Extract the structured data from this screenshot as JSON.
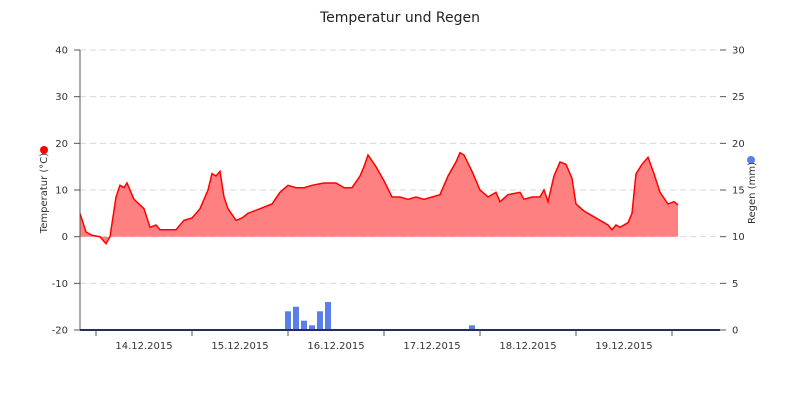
{
  "chart_data": {
    "type": "line",
    "title": "Temperatur und Regen",
    "x_range": [
      "2015-12-13T20:00",
      "2015-12-20T12:00"
    ],
    "x_tick_labels": [
      "14.12.2015",
      "15.12.2015",
      "16.12.2015",
      "17.12.2015",
      "18.12.2015",
      "19.12.2015"
    ],
    "x_ticks": [
      "2015-12-14T00:00",
      "2015-12-15T00:00",
      "2015-12-16T00:00",
      "2015-12-17T00:00",
      "2015-12-18T00:00",
      "2015-12-19T00:00",
      "2015-12-20T00:00"
    ],
    "y_left": {
      "label": "Temperatur (°C)",
      "range": [
        -20,
        40
      ],
      "ticks": [
        "-20",
        "-10",
        "0",
        "10",
        "20",
        "30",
        "40"
      ],
      "marker_color": "#ff0000"
    },
    "y_right": {
      "label": "Regen (mm)",
      "range": [
        0,
        30
      ],
      "ticks": [
        "0",
        "5",
        "10",
        "15",
        "20",
        "25",
        "30"
      ],
      "marker_color": "#5b7fe8"
    },
    "grid": true,
    "series": [
      {
        "type": "area",
        "axis": "left",
        "color": "#ff0000",
        "fill": "#ff8080",
        "points": [
          [
            "2015-12-13T20:00",
            5.0
          ],
          [
            "2015-12-13T21:30",
            1.0
          ],
          [
            "2015-12-13T23:00",
            0.3
          ],
          [
            "2015-12-14T01:00",
            0.0
          ],
          [
            "2015-12-14T02:30",
            -1.5
          ],
          [
            "2015-12-14T03:30",
            0.0
          ],
          [
            "2015-12-14T05:00",
            8.5
          ],
          [
            "2015-12-14T06:00",
            11.0
          ],
          [
            "2015-12-14T07:00",
            10.5
          ],
          [
            "2015-12-14T07:45",
            11.5
          ],
          [
            "2015-12-14T09:30",
            8.0
          ],
          [
            "2015-12-14T12:00",
            6.0
          ],
          [
            "2015-12-14T13:30",
            2.0
          ],
          [
            "2015-12-14T15:00",
            2.5
          ],
          [
            "2015-12-14T16:00",
            1.5
          ],
          [
            "2015-12-14T18:00",
            1.5
          ],
          [
            "2015-12-14T20:00",
            1.5
          ],
          [
            "2015-12-14T22:00",
            3.5
          ],
          [
            "2015-12-15T00:00",
            4.0
          ],
          [
            "2015-12-15T02:00",
            6.0
          ],
          [
            "2015-12-15T04:00",
            10.0
          ],
          [
            "2015-12-15T05:00",
            13.5
          ],
          [
            "2015-12-15T06:00",
            13.0
          ],
          [
            "2015-12-15T07:00",
            14.0
          ],
          [
            "2015-12-15T08:00",
            8.5
          ],
          [
            "2015-12-15T09:00",
            6.0
          ],
          [
            "2015-12-15T11:00",
            3.5
          ],
          [
            "2015-12-15T12:30",
            4.0
          ],
          [
            "2015-12-15T14:00",
            5.0
          ],
          [
            "2015-12-15T17:00",
            6.0
          ],
          [
            "2015-12-15T20:00",
            7.0
          ],
          [
            "2015-12-15T22:00",
            9.5
          ],
          [
            "2015-12-16T00:00",
            11.0
          ],
          [
            "2015-12-16T02:00",
            10.5
          ],
          [
            "2015-12-16T04:00",
            10.5
          ],
          [
            "2015-12-16T06:00",
            11.0
          ],
          [
            "2015-12-16T09:00",
            11.5
          ],
          [
            "2015-12-16T12:00",
            11.5
          ],
          [
            "2015-12-16T14:00",
            10.5
          ],
          [
            "2015-12-16T16:00",
            10.5
          ],
          [
            "2015-12-16T18:00",
            13.0
          ],
          [
            "2015-12-16T19:00",
            15.0
          ],
          [
            "2015-12-16T20:00",
            17.5
          ],
          [
            "2015-12-16T22:00",
            15.0
          ],
          [
            "2015-12-17T00:00",
            12.0
          ],
          [
            "2015-12-17T02:00",
            8.5
          ],
          [
            "2015-12-17T04:00",
            8.5
          ],
          [
            "2015-12-17T06:00",
            8.0
          ],
          [
            "2015-12-17T08:00",
            8.5
          ],
          [
            "2015-12-17T10:00",
            8.0
          ],
          [
            "2015-12-17T12:00",
            8.5
          ],
          [
            "2015-12-17T14:00",
            9.0
          ],
          [
            "2015-12-17T16:00",
            13.0
          ],
          [
            "2015-12-17T18:00",
            16.0
          ],
          [
            "2015-12-17T19:00",
            18.0
          ],
          [
            "2015-12-17T20:00",
            17.5
          ],
          [
            "2015-12-17T22:00",
            14.0
          ],
          [
            "2015-12-18T00:00",
            10.0
          ],
          [
            "2015-12-18T02:00",
            8.5
          ],
          [
            "2015-12-18T04:00",
            9.5
          ],
          [
            "2015-12-18T05:00",
            7.5
          ],
          [
            "2015-12-18T07:00",
            9.0
          ],
          [
            "2015-12-18T10:00",
            9.5
          ],
          [
            "2015-12-18T11:00",
            8.0
          ],
          [
            "2015-12-18T13:00",
            8.5
          ],
          [
            "2015-12-18T15:00",
            8.5
          ],
          [
            "2015-12-18T16:00",
            10.0
          ],
          [
            "2015-12-18T17:00",
            7.5
          ],
          [
            "2015-12-18T18:30",
            13.0
          ],
          [
            "2015-12-18T20:00",
            16.0
          ],
          [
            "2015-12-18T21:30",
            15.5
          ],
          [
            "2015-12-18T23:00",
            12.5
          ],
          [
            "2015-12-19T00:00",
            7.0
          ],
          [
            "2015-12-19T02:00",
            5.5
          ],
          [
            "2015-12-19T04:00",
            4.5
          ],
          [
            "2015-12-19T06:00",
            3.5
          ],
          [
            "2015-12-19T08:00",
            2.5
          ],
          [
            "2015-12-19T09:00",
            1.5
          ],
          [
            "2015-12-19T10:00",
            2.5
          ],
          [
            "2015-12-19T11:00",
            2.0
          ],
          [
            "2015-12-19T13:00",
            3.0
          ],
          [
            "2015-12-19T14:00",
            5.0
          ],
          [
            "2015-12-19T15:00",
            13.5
          ],
          [
            "2015-12-19T16:30",
            15.5
          ],
          [
            "2015-12-19T18:00",
            17.0
          ],
          [
            "2015-12-19T19:30",
            13.5
          ],
          [
            "2015-12-19T21:00",
            9.5
          ],
          [
            "2015-12-19T23:00",
            7.0
          ],
          [
            "2015-12-20T00:30",
            7.5
          ],
          [
            "2015-12-20T01:30",
            6.8
          ]
        ]
      },
      {
        "type": "bar",
        "axis": "right",
        "color": "#5b7fe8",
        "points": [
          [
            "2015-12-16T00:00",
            2.0
          ],
          [
            "2015-12-16T02:00",
            2.5
          ],
          [
            "2015-12-16T04:00",
            1.0
          ],
          [
            "2015-12-16T06:00",
            0.5
          ],
          [
            "2015-12-16T08:00",
            2.0
          ],
          [
            "2015-12-16T10:00",
            3.0
          ],
          [
            "2015-12-17T22:00",
            0.5
          ]
        ]
      }
    ]
  }
}
